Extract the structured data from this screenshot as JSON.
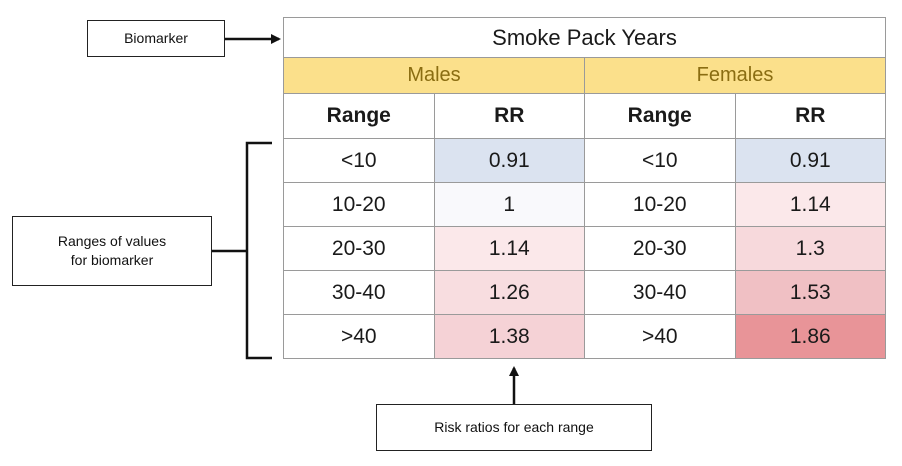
{
  "callouts": {
    "biomarker": "Biomarker",
    "ranges_line1": "Ranges of values",
    "ranges_line2": "for biomarker",
    "risk": "Risk ratios for each range"
  },
  "table": {
    "title": "Smoke Pack Years",
    "groups": [
      "Males",
      "Females"
    ],
    "column_headers": [
      "Range",
      "RR",
      "Range",
      "RR"
    ],
    "rows": [
      {
        "male_range": "<10",
        "male_rr": "0.91",
        "female_range": "<10",
        "female_rr": "0.91"
      },
      {
        "male_range": "10-20",
        "male_rr": "1",
        "female_range": "10-20",
        "female_rr": "1.14"
      },
      {
        "male_range": "20-30",
        "male_rr": "1.14",
        "female_range": "20-30",
        "female_rr": "1.3"
      },
      {
        "male_range": "30-40",
        "male_rr": "1.26",
        "female_range": "30-40",
        "female_rr": "1.53"
      },
      {
        "male_range": ">40",
        "male_rr": "1.38",
        "female_range": ">40",
        "female_rr": "1.86"
      }
    ]
  },
  "colors": {
    "group_header_bg": "#fbe08b",
    "group_header_text": "#8a6d12",
    "male_rr_bg": [
      "#dbe3f0",
      "#f9f9fc",
      "#fbe8ea",
      "#f8dde0",
      "#f5d2d6"
    ],
    "female_rr_bg": [
      "#dbe3f0",
      "#fbe8ea",
      "#f7d9dc",
      "#f0c0c4",
      "#e89498"
    ]
  }
}
